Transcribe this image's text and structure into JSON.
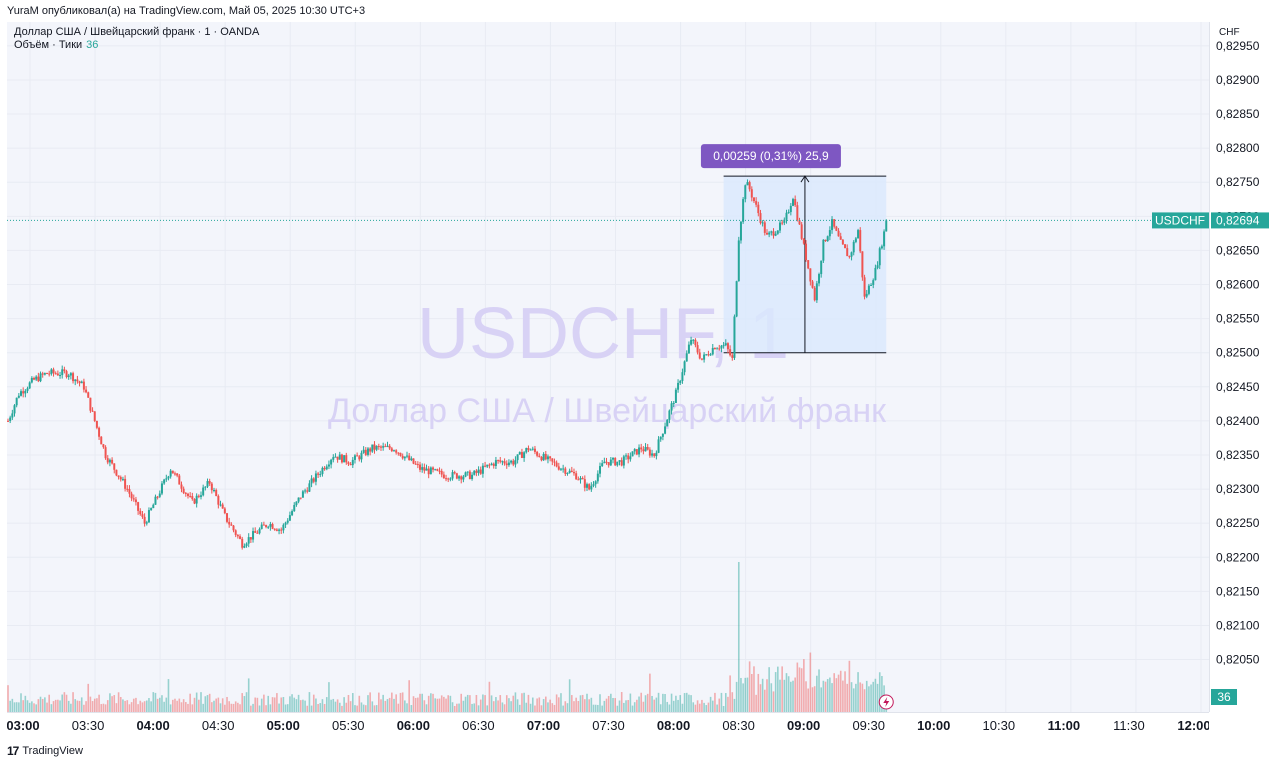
{
  "header": {
    "published_by": "YuraM опубликовал(а) на TradingView.com, Май 05, 2025 10:30 UTC+3"
  },
  "legend": {
    "instrument": "Доллар США / Швейцарский франк · 1 · OANDA",
    "volume_label": "Объём · Тики",
    "volume_value": "36"
  },
  "watermark": {
    "symbol": "USDCHF, 1",
    "description": "Доллар США / Швейцарский франк"
  },
  "price_axis": {
    "currency": "CHF",
    "current_symbol": "USDCHF",
    "current_price": "0,82694",
    "volume_badge": "36"
  },
  "measure": {
    "label": "0,00259 (0,31%) 25,9"
  },
  "footer": {
    "brand": "TradingView"
  },
  "colors": {
    "up": "#26a69a",
    "down": "#ef5350",
    "measure": "#7e57c2",
    "watermark": "#d8d2f5",
    "current": "#26a69a"
  },
  "chart_data": {
    "type": "candlestick",
    "symbol": "USDCHF",
    "timeframe": "1",
    "y_ticks": [
      "0,82950",
      "0,82900",
      "0,82850",
      "0,82800",
      "0,82750",
      "0,82700",
      "0,82650",
      "0,82600",
      "0,82550",
      "0,82500",
      "0,82450",
      "0,82400",
      "0,82350",
      "0,82300",
      "0,82250",
      "0,82200",
      "0,82150",
      "0,82100",
      "0,82050"
    ],
    "ylim": [
      0.8202,
      0.82985
    ],
    "x_ticks": [
      {
        "label": "03:00",
        "bold": true
      },
      {
        "label": "03:30",
        "bold": false
      },
      {
        "label": "04:00",
        "bold": true
      },
      {
        "label": "04:30",
        "bold": false
      },
      {
        "label": "05:00",
        "bold": true
      },
      {
        "label": "05:30",
        "bold": false
      },
      {
        "label": "06:00",
        "bold": true
      },
      {
        "label": "06:30",
        "bold": false
      },
      {
        "label": "07:00",
        "bold": true
      },
      {
        "label": "07:30",
        "bold": false
      },
      {
        "label": "08:00",
        "bold": true
      },
      {
        "label": "08:30",
        "bold": false
      },
      {
        "label": "09:00",
        "bold": true
      },
      {
        "label": "09:30",
        "bold": false
      },
      {
        "label": "10:00",
        "bold": true
      },
      {
        "label": "10:30",
        "bold": false
      },
      {
        "label": "11:00",
        "bold": true
      },
      {
        "label": "11:30",
        "bold": false
      },
      {
        "label": "12:00",
        "bold": true
      }
    ],
    "close_path": [
      [
        0,
        0.824
      ],
      [
        5,
        0.8244
      ],
      [
        12,
        0.8246
      ],
      [
        18,
        0.8247
      ],
      [
        28,
        0.8247
      ],
      [
        35,
        0.8245
      ],
      [
        45,
        0.8235
      ],
      [
        55,
        0.823
      ],
      [
        63,
        0.8225
      ],
      [
        75,
        0.8233
      ],
      [
        85,
        0.8228
      ],
      [
        93,
        0.8231
      ],
      [
        100,
        0.8226
      ],
      [
        108,
        0.8222
      ],
      [
        120,
        0.8225
      ],
      [
        126,
        0.8224
      ],
      [
        135,
        0.8229
      ],
      [
        150,
        0.8235
      ],
      [
        158,
        0.8234
      ],
      [
        168,
        0.8236
      ],
      [
        178,
        0.8236
      ],
      [
        190,
        0.8233
      ],
      [
        202,
        0.8232
      ],
      [
        214,
        0.8232
      ],
      [
        225,
        0.8234
      ],
      [
        233,
        0.8234
      ],
      [
        240,
        0.8236
      ],
      [
        250,
        0.8234
      ],
      [
        262,
        0.8232
      ],
      [
        268,
        0.823
      ],
      [
        275,
        0.8234
      ],
      [
        283,
        0.8234
      ],
      [
        292,
        0.8236
      ],
      [
        298,
        0.8235
      ],
      [
        308,
        0.8244
      ],
      [
        315,
        0.8252
      ],
      [
        320,
        0.8249
      ],
      [
        326,
        0.8251
      ],
      [
        331,
        0.8251
      ],
      [
        334,
        0.8249
      ],
      [
        337,
        0.8267
      ],
      [
        340,
        0.8275
      ],
      [
        342,
        0.8274
      ],
      [
        350,
        0.8267
      ],
      [
        358,
        0.8269
      ],
      [
        362,
        0.8273
      ],
      [
        368,
        0.8264
      ],
      [
        372,
        0.8258
      ],
      [
        376,
        0.8266
      ],
      [
        380,
        0.8269
      ],
      [
        384,
        0.8266
      ],
      [
        388,
        0.8264
      ],
      [
        392,
        0.8268
      ],
      [
        395,
        0.8258
      ],
      [
        400,
        0.8262
      ],
      [
        405,
        0.8269
      ]
    ],
    "volume": {
      "current": 36
    },
    "current_price": 0.82694,
    "measurement": {
      "from_minute": 330,
      "to_minute": 405,
      "low": 0.825,
      "high": 0.82759,
      "change": "0,00259",
      "percent": "0,31%",
      "pips": "25,9"
    }
  }
}
